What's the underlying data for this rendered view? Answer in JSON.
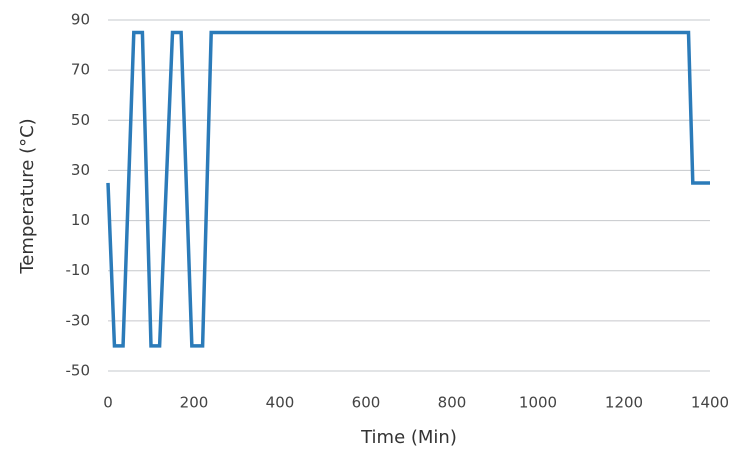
{
  "chart_data": {
    "type": "line",
    "xlabel": "Time (Min)",
    "ylabel": "Temperature (°C)",
    "x": [
      0,
      15,
      35,
      60,
      80,
      100,
      120,
      150,
      170,
      195,
      220,
      240,
      1350,
      1360,
      1400
    ],
    "series": [
      {
        "name": "Temperature",
        "color": "#2b7bb9",
        "values": [
          25,
          -40,
          -40,
          85,
          85,
          -40,
          -40,
          85,
          85,
          -40,
          -40,
          85,
          85,
          25,
          25
        ]
      }
    ],
    "xlim": [
      0,
      1400
    ],
    "xticks": [
      0,
      200,
      400,
      600,
      800,
      1000,
      1200,
      1400
    ],
    "ylim": [
      -50,
      90
    ],
    "yticks": [
      -50,
      -30,
      -10,
      10,
      30,
      50,
      70,
      90
    ],
    "grid": true
  }
}
